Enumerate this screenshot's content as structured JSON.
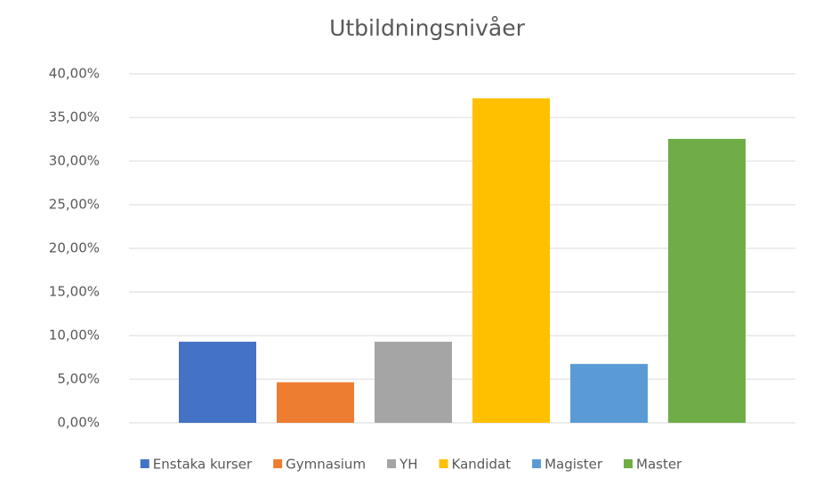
{
  "chart_data": {
    "type": "bar",
    "title": "Utbildningsnivåer",
    "categories": [
      null
    ],
    "series": [
      {
        "name": "Enstaka kurser",
        "color": "#4472c4",
        "values": [
          9.3
        ]
      },
      {
        "name": "Gymnasium",
        "color": "#ed7d31",
        "values": [
          4.65
        ]
      },
      {
        "name": "YH",
        "color": "#a5a5a5",
        "values": [
          9.3
        ]
      },
      {
        "name": "Kandidat",
        "color": "#ffc000",
        "values": [
          37.2
        ]
      },
      {
        "name": "Magister",
        "color": "#5b9bd5",
        "values": [
          6.75
        ]
      },
      {
        "name": "Master",
        "color": "#70ad47",
        "values": [
          32.55
        ]
      }
    ],
    "ylim": [
      0,
      40
    ],
    "yticks": [
      {
        "value": 0,
        "label": "0,00%"
      },
      {
        "value": 5,
        "label": "5,00%"
      },
      {
        "value": 10,
        "label": "10,00%"
      },
      {
        "value": 15,
        "label": "15,00%"
      },
      {
        "value": 20,
        "label": "20,00%"
      },
      {
        "value": 25,
        "label": "25,00%"
      },
      {
        "value": 30,
        "label": "30,00%"
      },
      {
        "value": 35,
        "label": "35,00%"
      },
      {
        "value": 40,
        "label": "40,00%"
      }
    ],
    "grid": true,
    "legend": "bottom"
  }
}
